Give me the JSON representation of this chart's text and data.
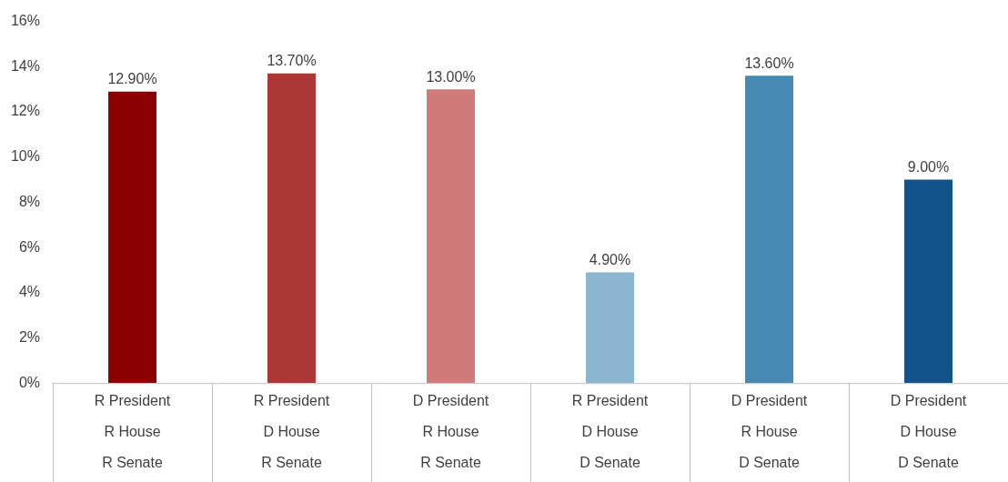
{
  "chart_data": {
    "type": "bar",
    "categories": [
      "R President\nR House\nR Senate",
      "R President\nD House\nR Senate",
      "D President\nR House\nR Senate",
      "R President\nD House\nD Senate",
      "D President\nR House\nD Senate",
      "D President\nD House\nD Senate"
    ],
    "values": [
      12.9,
      13.7,
      13.0,
      4.9,
      13.6,
      9.0
    ],
    "colors": [
      "#8b0000",
      "#ad3636",
      "#d17a7a",
      "#8cb6cf",
      "#4689b3",
      "#12538c"
    ],
    "value_labels": [
      "12.90%",
      "13.70%",
      "13.00%",
      "4.90%",
      "13.60%",
      "9.00%"
    ],
    "ylim": [
      0,
      16
    ],
    "yticks": [
      {
        "value": 0,
        "label": "0%"
      },
      {
        "value": 2,
        "label": "2%"
      },
      {
        "value": 4,
        "label": "4%"
      },
      {
        "value": 6,
        "label": "6%"
      },
      {
        "value": 8,
        "label": "8%"
      },
      {
        "value": 10,
        "label": "10%"
      },
      {
        "value": 12,
        "label": "12%"
      },
      {
        "value": 14,
        "label": "14%"
      },
      {
        "value": 16,
        "label": "16%"
      }
    ],
    "grid": false,
    "legend": false
  }
}
